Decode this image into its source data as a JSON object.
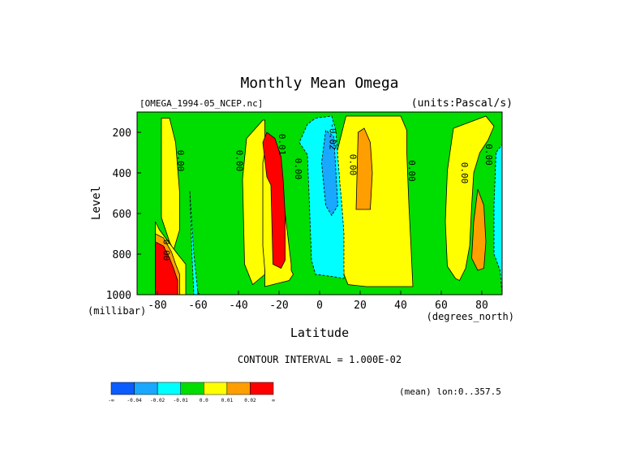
{
  "chart_data": {
    "type": "heatmap",
    "title": "Monthly Mean Omega",
    "file_label": "[OMEGA_1994-05_NCEP.nc]",
    "units_label": "(units:Pascal/s)",
    "xlabel": "Latitude",
    "x_units": "(degrees_north)",
    "ylabel": "Level",
    "y_units": "(millibar)",
    "xlim": [
      -90,
      90
    ],
    "ylim": [
      1000,
      100
    ],
    "x_ticks": [
      -80,
      -60,
      -40,
      -20,
      0,
      20,
      40,
      60,
      80
    ],
    "x_tick_labels": [
      "-80",
      "-60",
      "-40",
      "-20",
      "0",
      "20",
      "40",
      "60",
      "80"
    ],
    "y_ticks": [
      200,
      400,
      600,
      800,
      1000
    ],
    "y_tick_labels": [
      "200",
      "400",
      "600",
      "800",
      "1000"
    ],
    "contour_interval_text": "CONTOUR INTERVAL = 1.000E-02",
    "footnote": "(mean) lon:0..357.5",
    "background_color": "#00dd00",
    "colorbar": {
      "colors": [
        "#0a5cff",
        "#18a8ff",
        "#00ffff",
        "#00dd00",
        "#ffff00",
        "#ff9e00",
        "#ff0000"
      ],
      "labels": [
        "-∞",
        "-0.04",
        "-0.02",
        "-0.01",
        "0.0",
        "0.01",
        "0.02",
        "∞"
      ]
    },
    "regions": [
      {
        "level": 1,
        "pts": [
          [
            -27,
            140
          ],
          [
            -27,
            900
          ],
          [
            -33,
            950
          ],
          [
            -37,
            850
          ],
          [
            -38,
            430
          ],
          [
            -36,
            230
          ],
          [
            -28,
            140
          ]
        ]
      },
      {
        "level": 1,
        "pts": [
          [
            -78,
            130
          ],
          [
            -78,
            620
          ],
          [
            -74,
            740
          ],
          [
            -72,
            780
          ],
          [
            -69,
            680
          ],
          [
            -69,
            500
          ],
          [
            -71,
            250
          ],
          [
            -74,
            130
          ]
        ]
      },
      {
        "level": 1,
        "pts": [
          [
            -20,
            350
          ],
          [
            -14,
            850
          ],
          [
            -14,
            880
          ],
          [
            -13,
            900
          ],
          [
            -15,
            930
          ],
          [
            -27,
            960
          ],
          [
            -27,
            880
          ],
          [
            -28,
            760
          ],
          [
            -28,
            350
          ],
          [
            -26,
            240
          ],
          [
            -22,
            290
          ]
        ]
      },
      {
        "level": 1,
        "pts": [
          [
            13,
            120
          ],
          [
            8,
            320
          ],
          [
            10,
            530
          ],
          [
            12,
            900
          ],
          [
            14,
            950
          ],
          [
            23,
            960
          ],
          [
            46,
            960
          ],
          [
            45,
            750
          ],
          [
            44,
            550
          ],
          [
            43,
            300
          ],
          [
            43,
            190
          ],
          [
            40,
            120
          ]
        ]
      },
      {
        "level": 2,
        "pts": [
          [
            19,
            200
          ],
          [
            18,
            580
          ],
          [
            25,
            580
          ],
          [
            26,
            400
          ],
          [
            25,
            250
          ],
          [
            22,
            180
          ]
        ]
      },
      {
        "level": 1,
        "pts": [
          [
            66,
            180
          ],
          [
            63,
            390
          ],
          [
            62,
            640
          ],
          [
            63,
            860
          ],
          [
            67,
            920
          ],
          [
            69,
            930
          ],
          [
            72,
            870
          ],
          [
            74,
            760
          ],
          [
            75,
            560
          ],
          [
            76,
            400
          ],
          [
            79,
            300
          ],
          [
            83,
            240
          ],
          [
            86,
            170
          ],
          [
            82,
            120
          ]
        ]
      },
      {
        "level": 2,
        "pts": [
          [
            78,
            480
          ],
          [
            76,
            640
          ],
          [
            75,
            820
          ],
          [
            78,
            880
          ],
          [
            81,
            870
          ],
          [
            82,
            740
          ],
          [
            81,
            560
          ]
        ]
      },
      {
        "level": -1,
        "pts": [
          [
            -10,
            250
          ],
          [
            -6,
            310
          ],
          [
            -5,
            560
          ],
          [
            -4,
            830
          ],
          [
            -2,
            900
          ],
          [
            6,
            910
          ],
          [
            12,
            920
          ],
          [
            12,
            700
          ],
          [
            11,
            560
          ],
          [
            10,
            450
          ],
          [
            9,
            320
          ],
          [
            8,
            190
          ],
          [
            6,
            120
          ],
          [
            -2,
            130
          ],
          [
            -6,
            160
          ]
        ]
      },
      {
        "level": -2,
        "pts": [
          [
            3,
            190
          ],
          [
            1,
            350
          ],
          [
            3,
            560
          ],
          [
            6,
            610
          ],
          [
            9,
            560
          ],
          [
            8,
            390
          ],
          [
            7,
            220
          ]
        ]
      },
      {
        "level": -1,
        "pts": [
          [
            -64,
            490
          ],
          [
            -62,
            800
          ],
          [
            -60,
            990
          ],
          [
            -59,
            1000
          ],
          [
            -62,
            1000
          ],
          [
            -63,
            790
          ]
        ]
      },
      {
        "level": -1,
        "pts": [
          [
            87,
            300
          ],
          [
            86,
            560
          ],
          [
            86,
            800
          ],
          [
            89,
            880
          ],
          [
            90,
            1000
          ],
          [
            90,
            260
          ]
        ]
      },
      {
        "level": 3,
        "pts": [
          [
            -28,
            250
          ],
          [
            -26,
            420
          ],
          [
            -24,
            460
          ],
          [
            -23,
            850
          ],
          [
            -19,
            870
          ],
          [
            -17,
            830
          ],
          [
            -17,
            600
          ],
          [
            -18,
            430
          ],
          [
            -19,
            320
          ],
          [
            -22,
            230
          ],
          [
            -26,
            200
          ]
        ]
      },
      {
        "level": 1,
        "pts": [
          [
            -81,
            640
          ],
          [
            -79,
            680
          ],
          [
            -73,
            760
          ],
          [
            -70,
            800
          ],
          [
            -66,
            850
          ],
          [
            -66,
            1000
          ],
          [
            -81,
            1000
          ]
        ]
      },
      {
        "level": 2,
        "pts": [
          [
            -81,
            700
          ],
          [
            -77,
            720
          ],
          [
            -73,
            790
          ],
          [
            -71,
            850
          ],
          [
            -69,
            900
          ],
          [
            -69,
            1000
          ],
          [
            -81,
            1000
          ]
        ]
      },
      {
        "level": 3,
        "pts": [
          [
            -81,
            740
          ],
          [
            -77,
            760
          ],
          [
            -74,
            820
          ],
          [
            -72,
            870
          ],
          [
            -70,
            930
          ],
          [
            -70,
            1000
          ],
          [
            -81,
            1000
          ]
        ]
      }
    ],
    "contour_labels": [
      {
        "lat": -70,
        "lev": 340,
        "text": "0.00"
      },
      {
        "lat": -41,
        "lev": 340,
        "text": "0.00"
      },
      {
        "lat": -20,
        "lev": 260,
        "text": "0.01"
      },
      {
        "lat": -12,
        "lev": 380,
        "text": "0.00"
      },
      {
        "lat": 5,
        "lev": 220,
        "text": "-0.02"
      },
      {
        "lat": 15,
        "lev": 360,
        "text": "0.00"
      },
      {
        "lat": 44,
        "lev": 390,
        "text": "0.00"
      },
      {
        "lat": 70,
        "lev": 400,
        "text": "0.00"
      },
      {
        "lat": 82,
        "lev": 310,
        "text": "0.00"
      },
      {
        "lat": -77,
        "lev": 780,
        "text": "0.00"
      }
    ]
  }
}
